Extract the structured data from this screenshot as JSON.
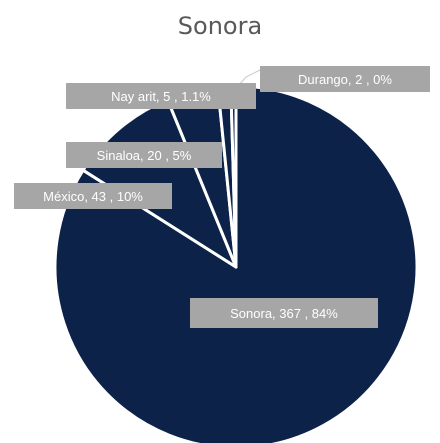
{
  "chart_data": {
    "type": "pie",
    "title": "Sonora",
    "slices": [
      {
        "name": "Sonora",
        "value": 367,
        "pct": "84%",
        "label": "Sonora,  367 , 84%"
      },
      {
        "name": "México",
        "value": 43,
        "pct": "10%",
        "label": "México,  43 , 10%"
      },
      {
        "name": "Sinaloa",
        "value": 20,
        "pct": "5%",
        "label": "Sinaloa,  20 , 5%"
      },
      {
        "name": "Nayarit",
        "value": 5,
        "pct": "1.1%",
        "label": "Nay arit,  5 , 1.1%"
      },
      {
        "name": "Durango",
        "value": 2,
        "pct": "0%",
        "label": "Durango,  2 , 0%"
      }
    ],
    "colors": {
      "Sonora": "#0d2249",
      "México": "#0d2249",
      "Sinaloa": "#0d2249",
      "Nayarit": "#0d2249",
      "Durango": "#0d2249",
      "slice_border": "#ffffff",
      "label_box": "#a6a6a6",
      "leader_line": "#c8c8c8"
    }
  }
}
